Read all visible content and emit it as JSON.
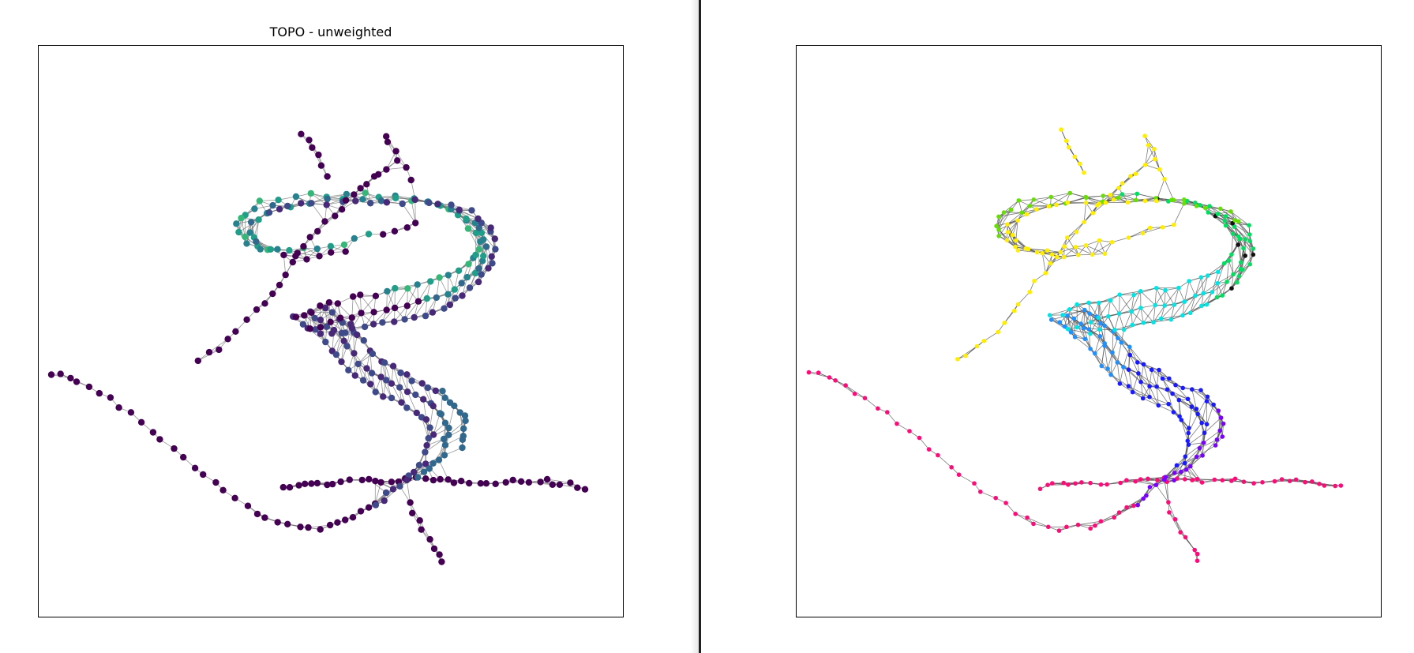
{
  "left_panel": {
    "title": "TOPO - unweighted",
    "colormap": "viridis",
    "node_fill_default": "#440154",
    "edge_color": "#606060"
  },
  "right_panel": {
    "title": "",
    "edge_color": "#505050",
    "cluster_colors": [
      "#ff0a78",
      "#7a00ff",
      "#1a1aff",
      "#1e90ff",
      "#00e5e5",
      "#00e060",
      "#66e000",
      "#ffee00",
      "#111111"
    ]
  }
}
